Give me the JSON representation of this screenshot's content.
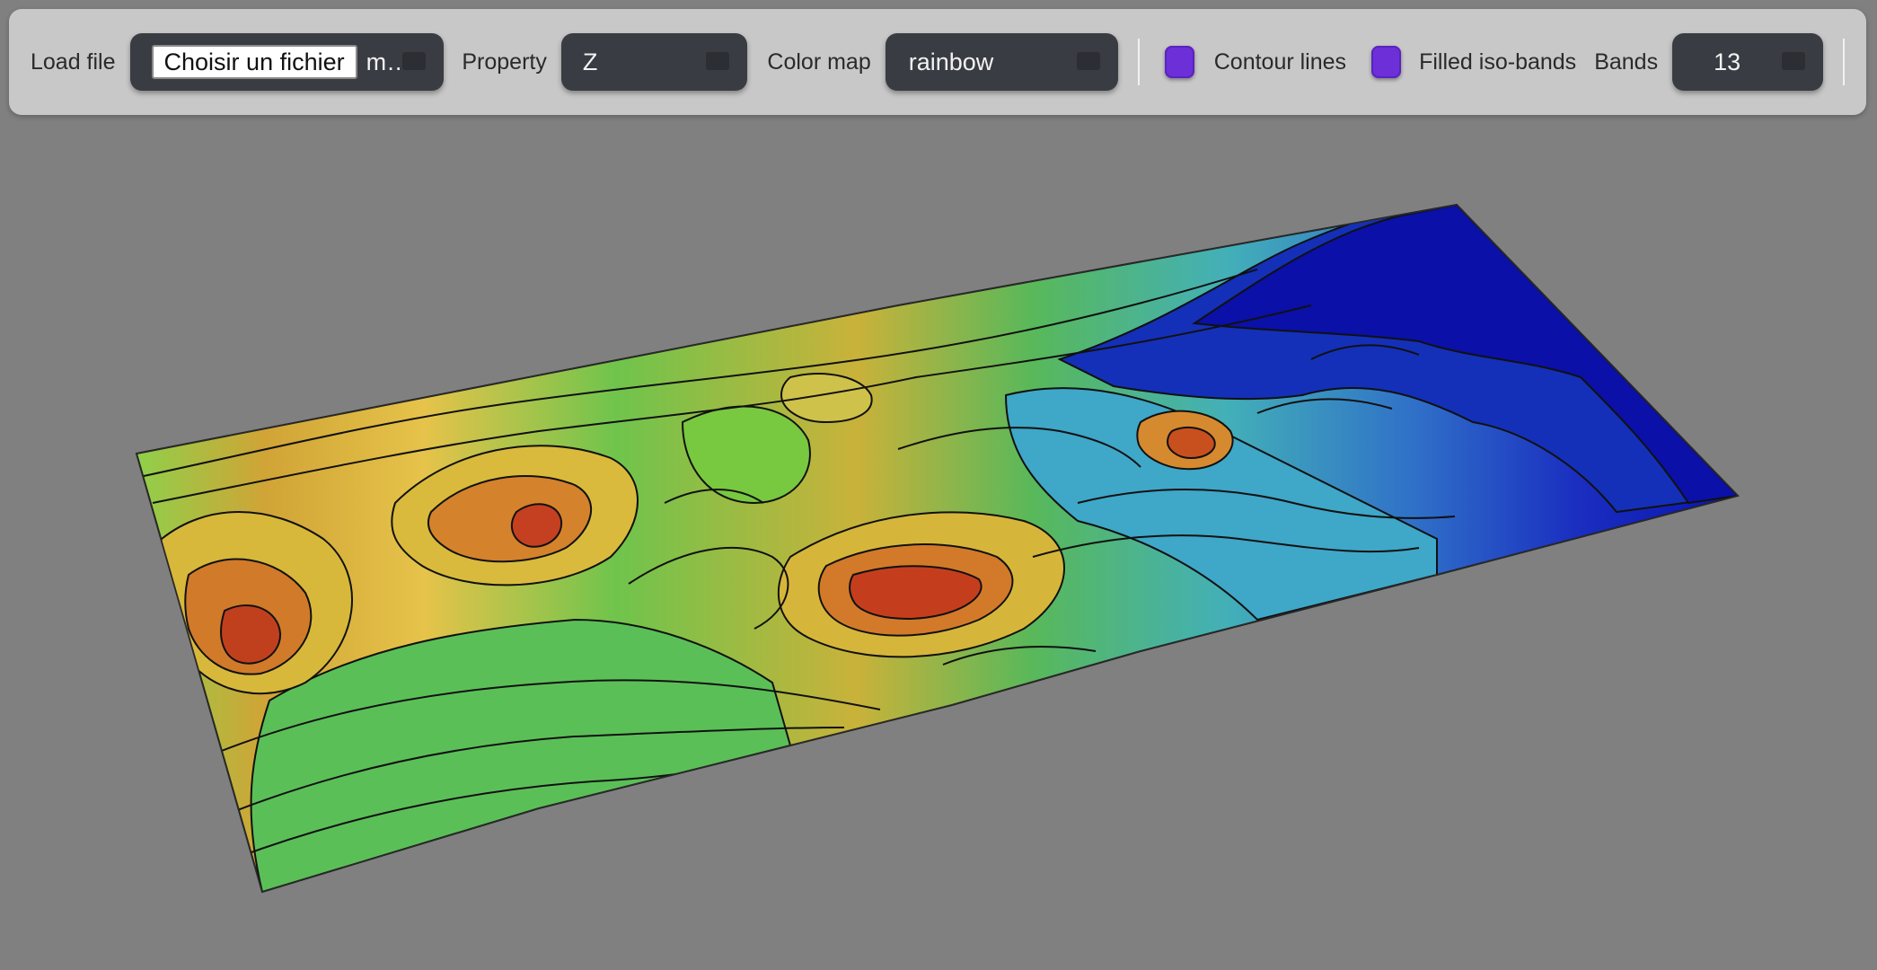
{
  "toolbar": {
    "load_file_label": "Load file",
    "file_button_label": "Choisir un fichier",
    "file_name": "m…",
    "property_label": "Property",
    "property_value": "Z",
    "colormap_label": "Color map",
    "colormap_value": "rainbow",
    "contour_lines_label": "Contour lines",
    "contour_lines_checked": true,
    "filled_isobands_label": "Filled iso-bands",
    "filled_isobands_checked": true,
    "bands_label": "Bands",
    "bands_value": "13"
  },
  "colors": {
    "background": "#808080",
    "toolbar": "#c8c8c8",
    "control": "#3a3c43",
    "checkbox": "#6c2fd8"
  },
  "view": {
    "surface": "3d-terrain-surface",
    "colormap": "rainbow",
    "bands": 13
  }
}
